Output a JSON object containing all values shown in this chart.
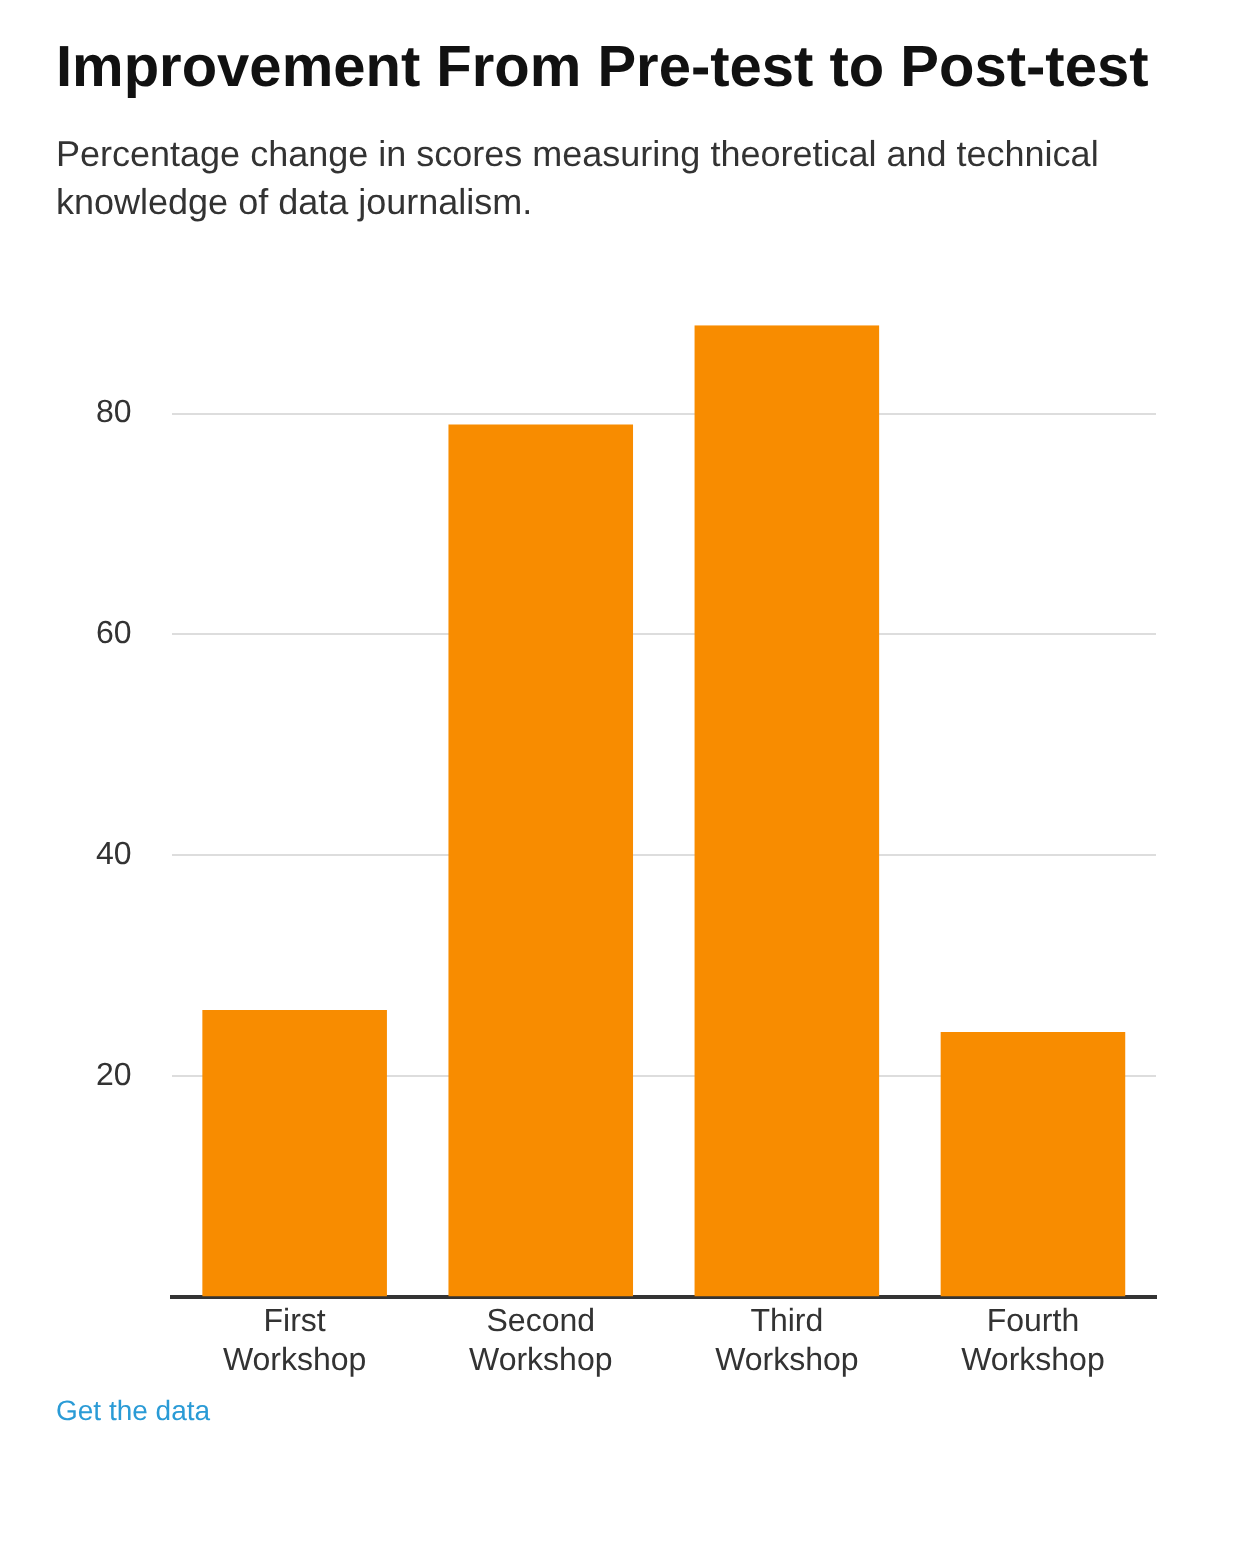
{
  "chart_data": {
    "type": "bar",
    "title": "Improvement From Pre-test to Post-test",
    "subtitle": "Percentage change in scores measuring theoretical and technical knowledge of data journalism.",
    "categories": [
      "First Workshop",
      "Second Workshop",
      "Third Workshop",
      "Fourth Workshop"
    ],
    "values": [
      26,
      79,
      88,
      24
    ],
    "color": "#f88c00",
    "ylim": [
      0,
      88
    ],
    "yticks": [
      {
        "value": 0,
        "label": null
      },
      20,
      40,
      60,
      80
    ],
    "grid": "y",
    "annotations": [
      "Get the data"
    ]
  }
}
